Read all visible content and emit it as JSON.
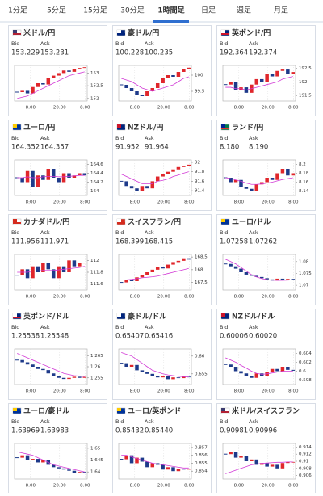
{
  "tabs": [
    "1分足",
    "5分足",
    "15分足",
    "30分足",
    "1時間足",
    "日足",
    "週足",
    "月足"
  ],
  "active_tab": 4,
  "bid_label": "Bid",
  "ask_label": "Ask",
  "time_labels": [
    "8:00",
    "20:00",
    "8:00"
  ],
  "cards": [
    {
      "pair": "米ドル/円",
      "bid": "153.229",
      "ask": "153.231",
      "chart": {
        "type": "candlestick",
        "ylim": [
          151.9,
          153.3
        ],
        "yticks": [
          153,
          152.5,
          152
        ],
        "values": [
          152.25,
          152.3,
          152.2,
          152.45,
          152.6,
          152.55,
          152.8,
          152.9,
          153.0,
          153.1,
          153.05,
          153.15,
          153.2,
          153.23
        ],
        "ma": [
          152.0,
          152.05,
          152.1,
          152.2,
          152.3,
          152.4,
          152.5,
          152.6,
          152.7,
          152.8,
          152.9,
          152.95,
          153.0,
          153.05
        ]
      }
    },
    {
      "pair": "豪ドル/円",
      "bid": "100.228",
      "ask": "100.235",
      "chart": {
        "type": "candlestick",
        "ylim": [
          99.2,
          100.3
        ],
        "yticks": [
          100,
          99.5
        ],
        "values": [
          99.7,
          99.6,
          99.5,
          99.4,
          99.35,
          99.5,
          99.6,
          99.75,
          99.9,
          100.0,
          99.95,
          100.1,
          100.2,
          100.23
        ],
        "ma": [
          99.9,
          99.85,
          99.8,
          99.7,
          99.6,
          99.55,
          99.5,
          99.55,
          99.6,
          99.65,
          99.7,
          99.8,
          99.9,
          99.95
        ]
      }
    },
    {
      "pair": "英ポンド/円",
      "bid": "192.364",
      "ask": "192.374",
      "chart": {
        "type": "candlestick",
        "ylim": [
          191.3,
          192.6
        ],
        "yticks": [
          192.5,
          192,
          191.5
        ],
        "values": [
          191.9,
          192.0,
          191.7,
          191.8,
          191.6,
          191.9,
          192.1,
          192.0,
          192.3,
          192.2,
          192.4,
          192.45,
          192.3,
          192.36
        ],
        "ma": [
          191.8,
          191.8,
          191.75,
          191.75,
          191.7,
          191.75,
          191.8,
          191.85,
          191.9,
          191.95,
          192.0,
          192.1,
          192.15,
          192.2
        ]
      }
    },
    {
      "pair": "ユーロ/円",
      "bid": "164.352",
      "ask": "164.357",
      "chart": {
        "type": "candlestick",
        "ylim": [
          163.9,
          164.7
        ],
        "yticks": [
          164.6,
          164.4,
          164.2,
          164
        ],
        "values": [
          164.3,
          164.2,
          164.45,
          164.1,
          164.35,
          164.25,
          164.5,
          164.3,
          164.2,
          164.4,
          164.3,
          164.35,
          164.4,
          164.35
        ],
        "ma": [
          164.3,
          164.3,
          164.32,
          164.3,
          164.3,
          164.32,
          164.33,
          164.33,
          164.32,
          164.32,
          164.33,
          164.34,
          164.35,
          164.35
        ]
      }
    },
    {
      "pair": "NZドル/円",
      "bid": "91.952",
      "ask": "91.964",
      "chart": {
        "type": "candlestick",
        "ylim": [
          91.3,
          92.05
        ],
        "yticks": [
          92,
          91.8,
          91.6,
          91.4
        ],
        "values": [
          91.6,
          91.5,
          91.45,
          91.4,
          91.5,
          91.45,
          91.6,
          91.7,
          91.75,
          91.8,
          91.85,
          91.9,
          91.92,
          91.95
        ],
        "ma": [
          91.75,
          91.7,
          91.65,
          91.6,
          91.55,
          91.55,
          91.55,
          91.6,
          91.62,
          91.65,
          91.7,
          91.73,
          91.77,
          91.8
        ]
      }
    },
    {
      "pair": "ランド/円",
      "bid": "8.180",
      "ask": "8.190",
      "chart": {
        "type": "candlestick",
        "ylim": [
          8.13,
          8.21
        ],
        "yticks": [
          8.2,
          8.18,
          8.16,
          8.14
        ],
        "values": [
          8.17,
          8.16,
          8.165,
          8.15,
          8.145,
          8.14,
          8.155,
          8.16,
          8.17,
          8.165,
          8.18,
          8.19,
          8.175,
          8.18
        ],
        "ma": [
          8.17,
          8.168,
          8.165,
          8.162,
          8.158,
          8.155,
          8.155,
          8.156,
          8.158,
          8.16,
          8.163,
          8.166,
          8.168,
          8.17
        ]
      }
    },
    {
      "pair": "カナダドル/円",
      "bid": "111.956",
      "ask": "111.971",
      "chart": {
        "type": "candlestick",
        "ylim": [
          111.5,
          112.1
        ],
        "yticks": [
          112,
          111.8,
          111.6
        ],
        "values": [
          111.75,
          111.85,
          111.7,
          111.9,
          111.8,
          111.95,
          111.85,
          111.7,
          111.9,
          111.8,
          112.0,
          111.9,
          111.95,
          111.96
        ],
        "ma": [
          111.8,
          111.8,
          111.8,
          111.82,
          111.82,
          111.83,
          111.83,
          111.83,
          111.84,
          111.85,
          111.86,
          111.87,
          111.88,
          111.9
        ]
      }
    },
    {
      "pair": "スイスフラン/円",
      "bid": "168.399",
      "ask": "168.415",
      "chart": {
        "type": "candlestick",
        "ylim": [
          167.2,
          168.6
        ],
        "yticks": [
          168.5,
          168,
          167.5
        ],
        "values": [
          167.5,
          167.6,
          167.55,
          167.7,
          167.8,
          167.9,
          168.0,
          168.1,
          168.05,
          168.2,
          168.3,
          168.35,
          168.45,
          168.4
        ],
        "ma": [
          167.6,
          167.6,
          167.62,
          167.65,
          167.68,
          167.7,
          167.72,
          167.75,
          167.8,
          167.85,
          167.9,
          167.95,
          168.0,
          168.05
        ]
      }
    },
    {
      "pair": "ユーロ/ドル",
      "bid": "1.07258",
      "ask": "1.07262",
      "chart": {
        "type": "candlestick",
        "ylim": [
          1.068,
          1.083
        ],
        "yticks": [
          1.08,
          1.075,
          1.07
        ],
        "values": [
          1.079,
          1.078,
          1.077,
          1.0755,
          1.0745,
          1.074,
          1.0735,
          1.073,
          1.0725,
          1.072,
          1.0728,
          1.0722,
          1.0727,
          1.0726
        ],
        "ma": [
          1.081,
          1.08,
          1.079,
          1.0775,
          1.076,
          1.0745,
          1.0735,
          1.0728,
          1.0724,
          1.0722,
          1.0721,
          1.0721,
          1.0722,
          1.0723
        ]
      }
    },
    {
      "pair": "英ポンド/ドル",
      "bid": "1.25538",
      "ask": "1.25548",
      "chart": {
        "type": "candlestick",
        "ylim": [
          1.252,
          1.268
        ],
        "yticks": [
          1.265,
          1.26,
          1.255
        ],
        "values": [
          1.263,
          1.262,
          1.261,
          1.26,
          1.259,
          1.2585,
          1.257,
          1.256,
          1.255,
          1.2545,
          1.255,
          1.2555,
          1.255,
          1.2554
        ],
        "ma": [
          1.266,
          1.265,
          1.264,
          1.263,
          1.262,
          1.261,
          1.26,
          1.259,
          1.258,
          1.257,
          1.2565,
          1.256,
          1.2558,
          1.2556
        ]
      }
    },
    {
      "pair": "豪ドル/ドル",
      "bid": "0.65407",
      "ask": "0.65416",
      "chart": {
        "type": "candlestick",
        "ylim": [
          0.652,
          0.662
        ],
        "yticks": [
          0.66,
          0.655
        ],
        "values": [
          0.658,
          0.657,
          0.6575,
          0.656,
          0.6555,
          0.655,
          0.6545,
          0.654,
          0.6545,
          0.6535,
          0.654,
          0.6538,
          0.6542,
          0.6541
        ],
        "ma": [
          0.661,
          0.6605,
          0.66,
          0.659,
          0.658,
          0.657,
          0.656,
          0.6555,
          0.655,
          0.6547,
          0.6545,
          0.6543,
          0.6542,
          0.6541
        ]
      }
    },
    {
      "pair": "NZドル/ドル",
      "bid": "0.60006",
      "ask": "0.60020",
      "chart": {
        "type": "candlestick",
        "ylim": [
          0.597,
          0.605
        ],
        "yticks": [
          0.604,
          0.602,
          0.6,
          0.598
        ],
        "values": [
          0.6015,
          0.601,
          0.6,
          0.5995,
          0.599,
          0.5985,
          0.5995,
          0.599,
          0.5998,
          0.6005,
          0.6,
          0.601,
          0.6003,
          0.6001
        ],
        "ma": [
          0.603,
          0.6025,
          0.602,
          0.6013,
          0.6007,
          0.6,
          0.5995,
          0.5993,
          0.5994,
          0.5996,
          0.5998,
          0.6,
          0.6,
          0.6
        ]
      }
    },
    {
      "pair": "ユーロ/豪ドル",
      "bid": "1.63969",
      "ask": "1.63983",
      "chart": {
        "type": "candlestick",
        "ylim": [
          1.637,
          1.652
        ],
        "yticks": [
          1.65,
          1.645,
          1.64
        ],
        "values": [
          1.646,
          1.647,
          1.645,
          1.6455,
          1.644,
          1.645,
          1.643,
          1.642,
          1.6415,
          1.641,
          1.6405,
          1.6395,
          1.64,
          1.6397
        ],
        "ma": [
          1.6485,
          1.648,
          1.6475,
          1.647,
          1.646,
          1.645,
          1.644,
          1.643,
          1.6425,
          1.642,
          1.6415,
          1.641,
          1.6405,
          1.64
        ]
      }
    },
    {
      "pair": "ユーロ/英ポンド",
      "bid": "0.85432",
      "ask": "0.85440",
      "chart": {
        "type": "candlestick",
        "ylim": [
          0.853,
          0.8575
        ],
        "yticks": [
          0.857,
          0.856,
          0.855,
          0.854
        ],
        "values": [
          0.8555,
          0.856,
          0.855,
          0.8557,
          0.8552,
          0.8545,
          0.855,
          0.8548,
          0.8542,
          0.8545,
          0.854,
          0.8543,
          0.8542,
          0.8543
        ],
        "ma": [
          0.856,
          0.856,
          0.8558,
          0.8556,
          0.8554,
          0.8552,
          0.855,
          0.8549,
          0.8548,
          0.8547,
          0.8546,
          0.8545,
          0.8544,
          0.8544
        ]
      }
    },
    {
      "pair": "米ドル/スイスフラン",
      "bid": "0.90981",
      "ask": "0.90996",
      "chart": {
        "type": "candlestick",
        "ylim": [
          0.905,
          0.915
        ],
        "yticks": [
          0.914,
          0.912,
          0.91,
          0.908,
          0.906
        ],
        "values": [
          0.912,
          0.9125,
          0.911,
          0.9115,
          0.91,
          0.9105,
          0.909,
          0.9095,
          0.9085,
          0.909,
          0.908,
          0.9095,
          0.9098,
          0.9098
        ],
        "ma": [
          0.9065,
          0.907,
          0.9075,
          0.908,
          0.9085,
          0.909,
          0.9092,
          0.9094,
          0.9095,
          0.9096,
          0.9097,
          0.9097,
          0.9098,
          0.9098
        ]
      }
    }
  ]
}
